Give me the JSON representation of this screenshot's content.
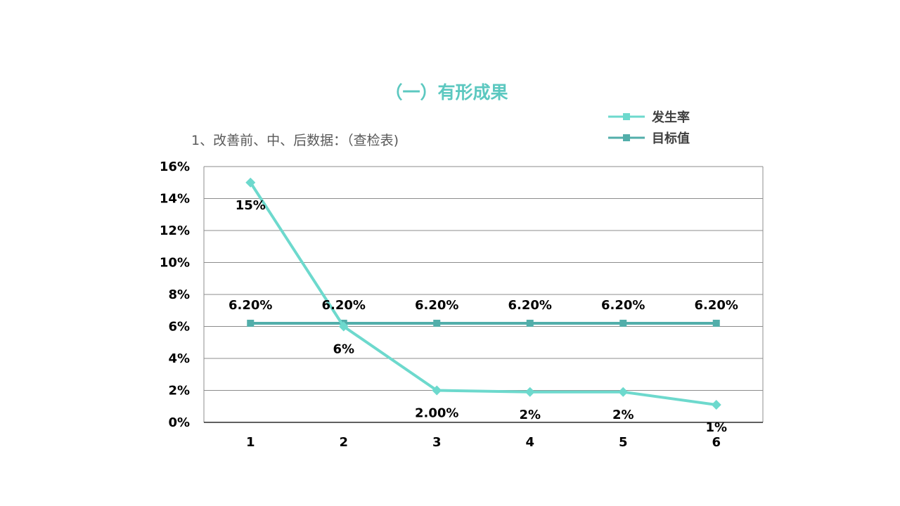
{
  "slide": {
    "title": "（一）有形成果",
    "subtitle": "1、改善前、中、后数据：（查检表)"
  },
  "chart_data": {
    "type": "line",
    "x": [
      "1",
      "2",
      "3",
      "4",
      "5",
      "6"
    ],
    "ylim": [
      0,
      16
    ],
    "yticks": [
      "0%",
      "2%",
      "4%",
      "6%",
      "8%",
      "10%",
      "12%",
      "14%",
      "16%"
    ],
    "grid": true,
    "legend_position": "top-right",
    "series": [
      {
        "name": "发生率",
        "color": "#6dd9cd",
        "marker": "diamond",
        "values": [
          15,
          6,
          2,
          1.9,
          1.9,
          1.1
        ],
        "labels": [
          "15%",
          "6%",
          "2.00%",
          "2%",
          "2%",
          "1%"
        ],
        "label_position": "below"
      },
      {
        "name": "目标值",
        "color": "#52aeaa",
        "marker": "square",
        "values": [
          6.2,
          6.2,
          6.2,
          6.2,
          6.2,
          6.2
        ],
        "labels": [
          "6.20%",
          "6.20%",
          "6.20%",
          "6.20%",
          "6.20%",
          "6.20%"
        ],
        "label_position": "above"
      }
    ]
  }
}
